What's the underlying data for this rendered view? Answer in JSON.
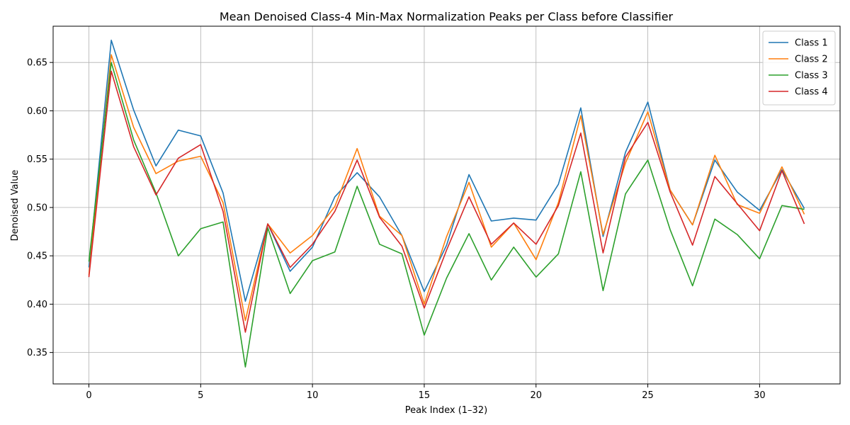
{
  "chart_data": {
    "type": "line",
    "title": "Mean Denoised Class-4 Min-Max Normalization Peaks per Class before Classifier",
    "xlabel": "Peak Index (1–32)",
    "ylabel": "Denoised Value",
    "xlim": [
      -1.6,
      33.6
    ],
    "ylim": [
      0.3175,
      0.6875
    ],
    "xticks": [
      0,
      5,
      10,
      15,
      20,
      25,
      30
    ],
    "yticks": [
      0.35,
      0.4,
      0.45,
      0.5,
      0.55,
      0.6,
      0.65
    ],
    "grid": true,
    "legend_position": "top-right",
    "x": [
      0,
      1,
      2,
      3,
      4,
      5,
      6,
      7,
      8,
      9,
      10,
      11,
      12,
      13,
      14,
      15,
      16,
      17,
      18,
      19,
      20,
      21,
      22,
      23,
      24,
      25,
      26,
      27,
      28,
      29,
      30,
      31,
      32
    ],
    "series": [
      {
        "name": "Class 1",
        "color": "#1f77b4",
        "values": [
          0.438,
          0.673,
          0.601,
          0.543,
          0.58,
          0.574,
          0.515,
          0.403,
          0.483,
          0.434,
          0.459,
          0.511,
          0.536,
          0.511,
          0.471,
          0.413,
          0.461,
          0.534,
          0.486,
          0.489,
          0.487,
          0.524,
          0.603,
          0.47,
          0.557,
          0.609,
          0.518,
          0.482,
          0.549,
          0.516,
          0.497,
          0.539,
          0.499
        ]
      },
      {
        "name": "Class 2",
        "color": "#ff7f0e",
        "values": [
          0.43,
          0.658,
          0.583,
          0.535,
          0.548,
          0.553,
          0.505,
          0.383,
          0.483,
          0.453,
          0.471,
          0.501,
          0.561,
          0.491,
          0.471,
          0.4,
          0.47,
          0.526,
          0.459,
          0.484,
          0.446,
          0.505,
          0.595,
          0.472,
          0.546,
          0.599,
          0.518,
          0.482,
          0.554,
          0.503,
          0.494,
          0.542,
          0.493
        ]
      },
      {
        "name": "Class 3",
        "color": "#2ca02c",
        "values": [
          0.444,
          0.65,
          0.57,
          0.515,
          0.45,
          0.478,
          0.485,
          0.335,
          0.479,
          0.411,
          0.445,
          0.454,
          0.522,
          0.462,
          0.452,
          0.368,
          0.427,
          0.473,
          0.425,
          0.459,
          0.428,
          0.452,
          0.537,
          0.414,
          0.514,
          0.549,
          0.477,
          0.419,
          0.488,
          0.472,
          0.447,
          0.502,
          0.498
        ]
      },
      {
        "name": "Class 4",
        "color": "#d62728",
        "values": [
          0.428,
          0.641,
          0.563,
          0.513,
          0.551,
          0.565,
          0.496,
          0.371,
          0.483,
          0.438,
          0.462,
          0.496,
          0.549,
          0.49,
          0.46,
          0.396,
          0.456,
          0.511,
          0.462,
          0.484,
          0.462,
          0.502,
          0.577,
          0.453,
          0.552,
          0.588,
          0.516,
          0.461,
          0.532,
          0.504,
          0.476,
          0.538,
          0.483
        ]
      }
    ]
  }
}
